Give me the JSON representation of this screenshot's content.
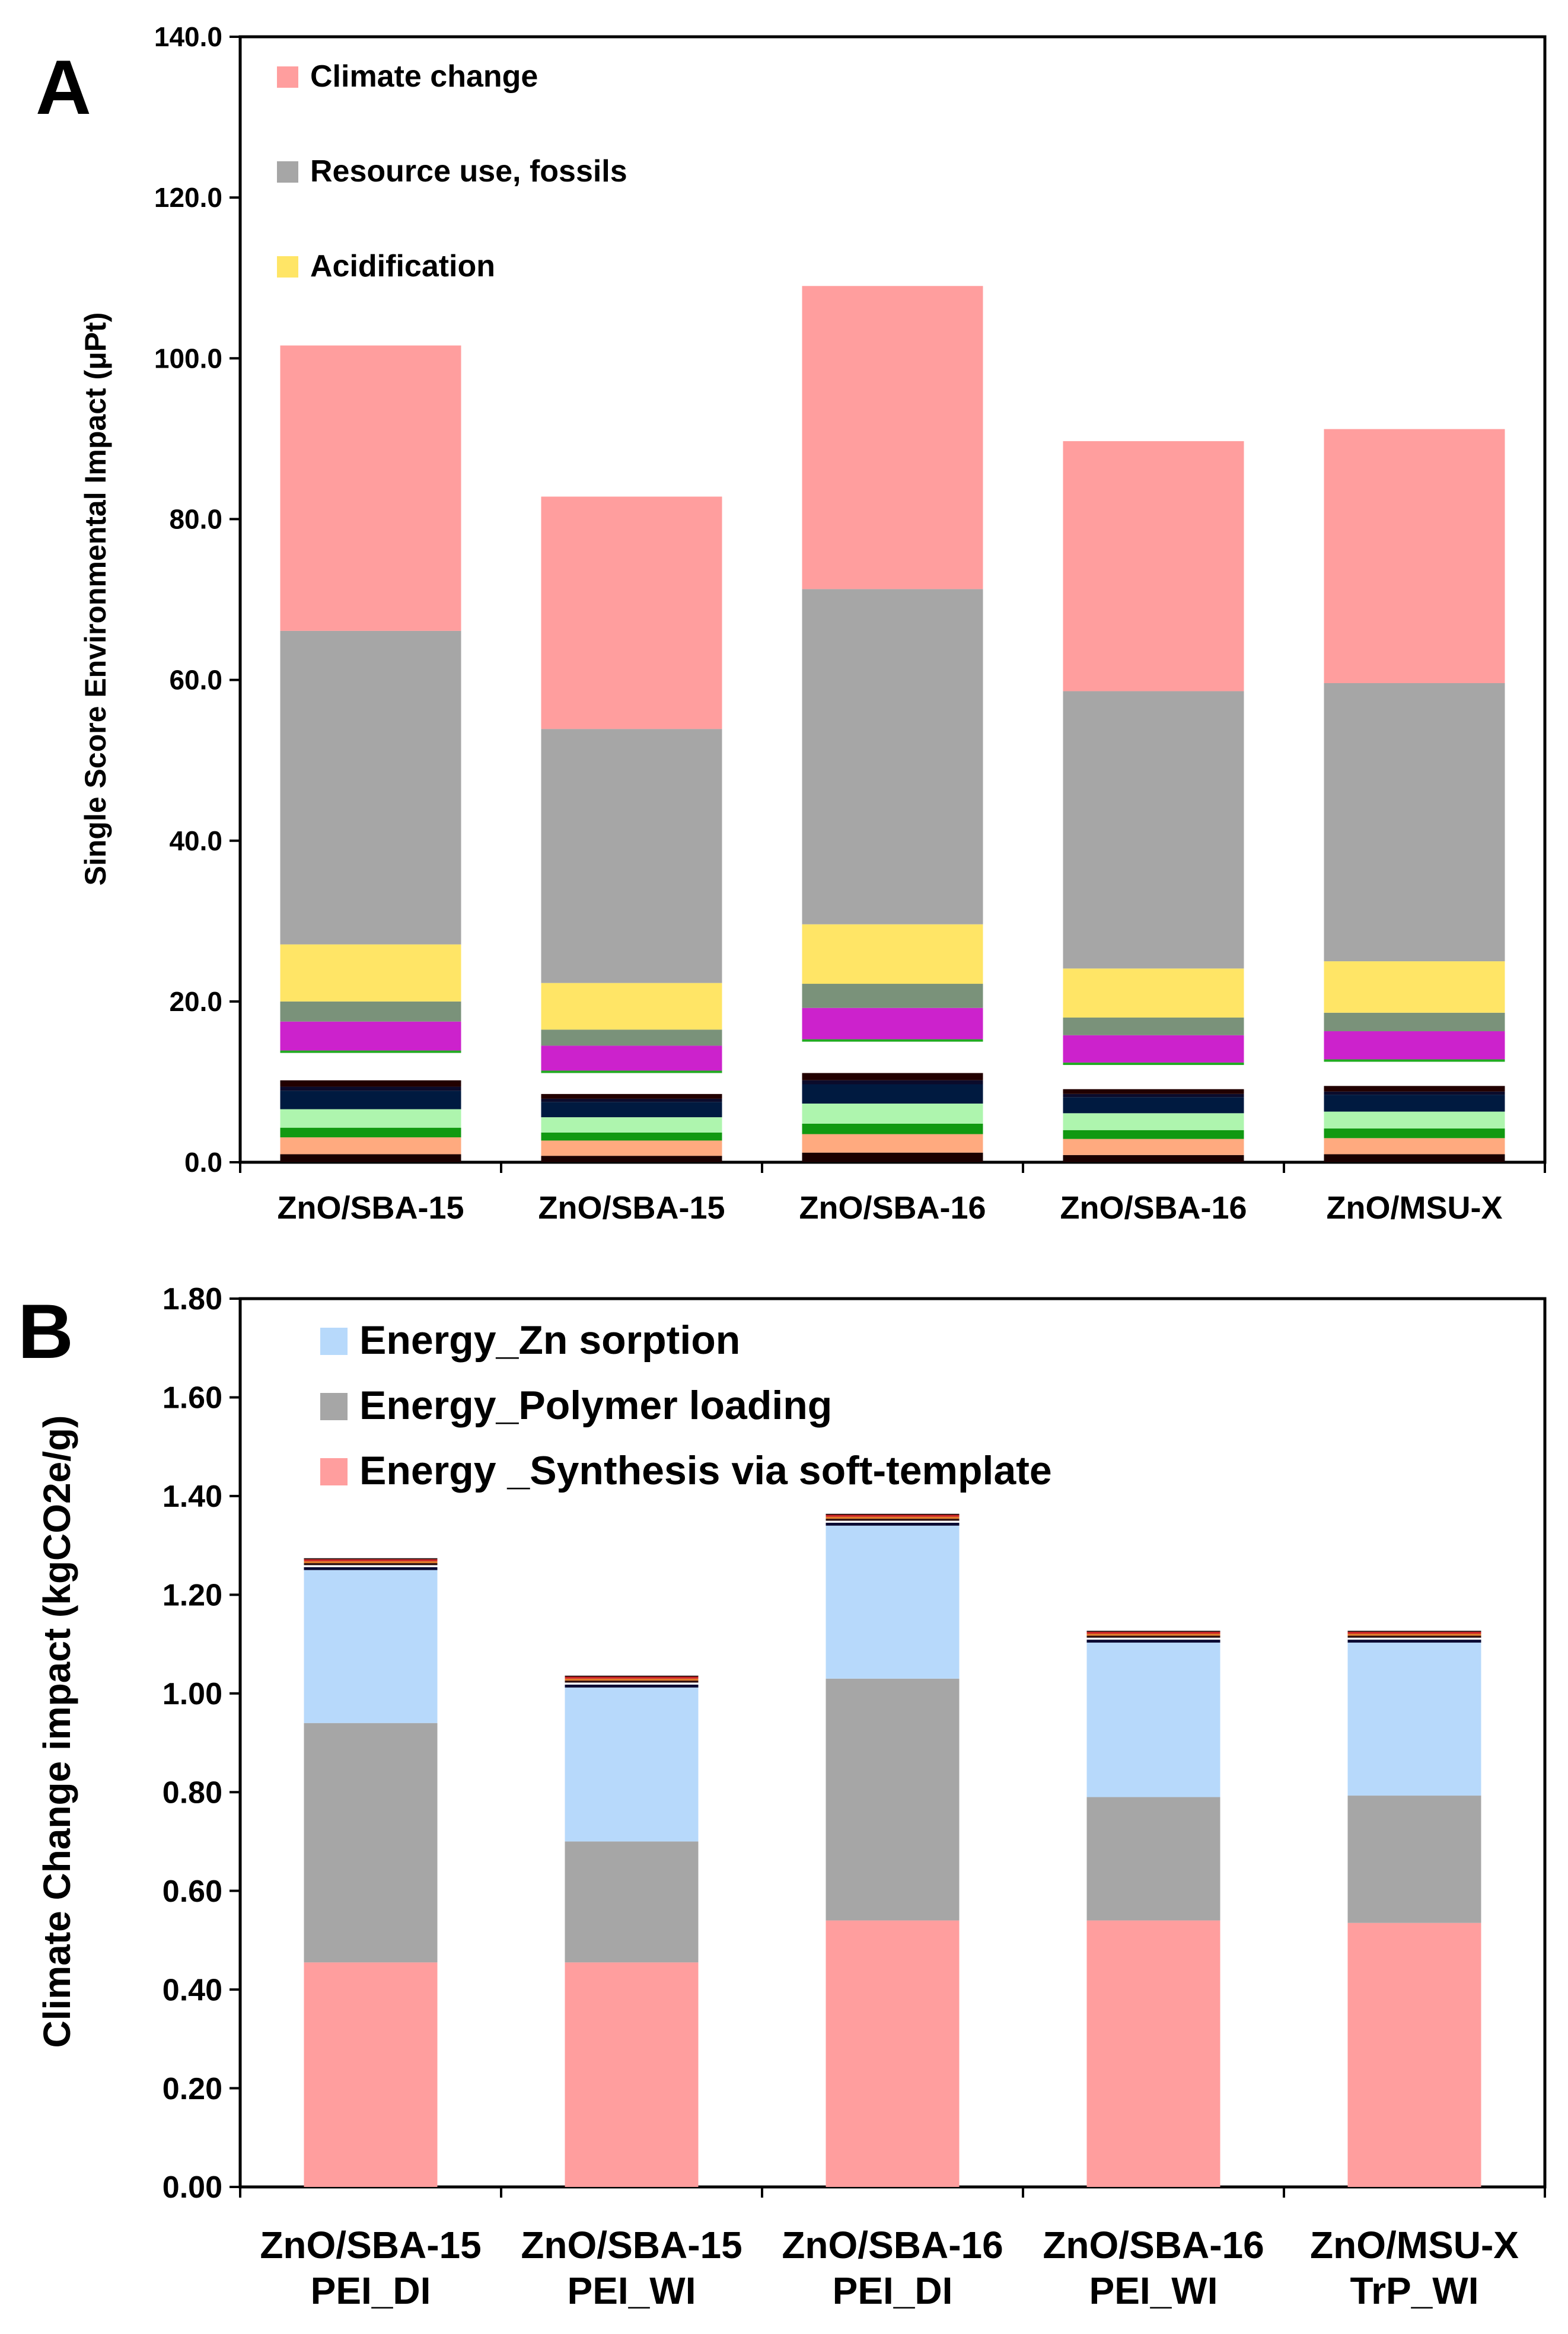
{
  "chart_data": [
    {
      "panel": "A",
      "type": "bar",
      "stacked": true,
      "ylabel": "Single Score Environmental Impact  (μPt)",
      "ylim": [
        0,
        140
      ],
      "yticks": [
        "0.0",
        "20.0",
        "40.0",
        "60.0",
        "80.0",
        "100.0",
        "120.0",
        "140.0"
      ],
      "ytick_values": [
        0,
        20,
        40,
        60,
        80,
        100,
        120,
        140
      ],
      "categories": [
        "ZnO/SBA-15",
        "ZnO/SBA-15",
        "ZnO/SBA-16",
        "ZnO/SBA-16",
        "ZnO/MSU-X"
      ],
      "legend": [
        {
          "name": "Climate change",
          "color": "#ff9e9e"
        },
        {
          "name": "Resource use, fossils",
          "color": "#a6a6a6"
        },
        {
          "name": "Acidification",
          "color": "#ffe566"
        }
      ],
      "series": [
        {
          "color": "#1a0000",
          "values": [
            1.0,
            0.8,
            1.2,
            0.9,
            1.0
          ]
        },
        {
          "color": "#ffaa7f",
          "values": [
            2.1,
            1.9,
            2.3,
            2.0,
            2.0
          ]
        },
        {
          "color": "#119911",
          "values": [
            1.2,
            1.0,
            1.3,
            1.1,
            1.2
          ]
        },
        {
          "color": "#aef5ae",
          "values": [
            2.3,
            1.9,
            2.5,
            2.1,
            2.1
          ]
        },
        {
          "color": "#001a40",
          "values": [
            2.3,
            1.9,
            2.4,
            2.0,
            2.1
          ]
        },
        {
          "color": "#0b0b2b",
          "values": [
            0.5,
            0.4,
            0.5,
            0.4,
            0.4
          ]
        },
        {
          "color": "#220000",
          "values": [
            0.8,
            0.6,
            0.9,
            0.6,
            0.7
          ]
        },
        {
          "color": "#ffffff",
          "values": [
            3.4,
            2.6,
            3.9,
            3.0,
            3.0
          ]
        },
        {
          "color": "#22aa22",
          "values": [
            0.3,
            0.3,
            0.3,
            0.3,
            0.3
          ]
        },
        {
          "color": "#cc22cc",
          "values": [
            3.6,
            3.1,
            3.9,
            3.4,
            3.5
          ]
        },
        {
          "color": "#7a927a",
          "values": [
            2.5,
            2.0,
            3.0,
            2.2,
            2.3
          ]
        },
        {
          "name": "Acidification",
          "color": "#ffe566",
          "values": [
            7.1,
            5.8,
            7.4,
            6.1,
            6.4
          ]
        },
        {
          "name": "Resource use, fossils",
          "color": "#a6a6a6",
          "values": [
            39.0,
            31.6,
            41.7,
            34.5,
            34.6
          ]
        },
        {
          "name": "Climate change",
          "color": "#ff9e9e",
          "values": [
            35.5,
            28.9,
            37.7,
            31.1,
            31.6
          ]
        }
      ]
    },
    {
      "panel": "B",
      "type": "bar",
      "stacked": true,
      "ylabel": "Climate Change impact (kgCO2e/g)",
      "ylim": [
        0,
        1.8
      ],
      "yticks": [
        "0.00",
        "0.20",
        "0.40",
        "0.60",
        "0.80",
        "1.00",
        "1.20",
        "1.40",
        "1.60",
        "1.80"
      ],
      "ytick_values": [
        0,
        0.2,
        0.4,
        0.6,
        0.8,
        1.0,
        1.2,
        1.4,
        1.6,
        1.8
      ],
      "categories": [
        {
          "line1": "ZnO/SBA-15",
          "line2": "PEI_DI"
        },
        {
          "line1": "ZnO/SBA-15",
          "line2": "PEI_WI"
        },
        {
          "line1": "ZnO/SBA-16",
          "line2": "PEI_DI"
        },
        {
          "line1": "ZnO/SBA-16",
          "line2": "PEI_WI"
        },
        {
          "line1": "ZnO/MSU-X",
          "line2": "TrP_WI"
        }
      ],
      "legend": [
        {
          "name": "Energy_Zn sorption",
          "color": "#b7d9fb"
        },
        {
          "name": "Energy_Polymer loading",
          "color": "#a6a6a6"
        },
        {
          "name": "Energy _Synthesis via soft-template",
          "color": "#ff9e9e"
        }
      ],
      "series": [
        {
          "name": "Energy _Synthesis via soft-template",
          "color": "#ff9e9e",
          "values": [
            0.455,
            0.455,
            0.54,
            0.54,
            0.535
          ]
        },
        {
          "name": "Energy_Polymer loading",
          "color": "#a6a6a6",
          "values": [
            0.485,
            0.245,
            0.49,
            0.25,
            0.258
          ]
        },
        {
          "name": "Energy_Zn sorption",
          "color": "#b7d9fb",
          "values": [
            0.31,
            0.312,
            0.31,
            0.313,
            0.31
          ]
        },
        {
          "color": "#0a0a33",
          "values": [
            0.006,
            0.006,
            0.006,
            0.006,
            0.006
          ]
        },
        {
          "color": "#ffffff",
          "values": [
            0.004,
            0.004,
            0.004,
            0.004,
            0.004
          ]
        },
        {
          "color": "#2a0a0a",
          "values": [
            0.004,
            0.004,
            0.004,
            0.004,
            0.004
          ]
        },
        {
          "color": "#e07a2a",
          "values": [
            0.004,
            0.004,
            0.004,
            0.004,
            0.004
          ]
        },
        {
          "color": "#cc2222",
          "values": [
            0.004,
            0.004,
            0.004,
            0.004,
            0.004
          ]
        },
        {
          "color": "#1a0a0a",
          "values": [
            0.002,
            0.002,
            0.002,
            0.002,
            0.002
          ]
        }
      ]
    }
  ]
}
